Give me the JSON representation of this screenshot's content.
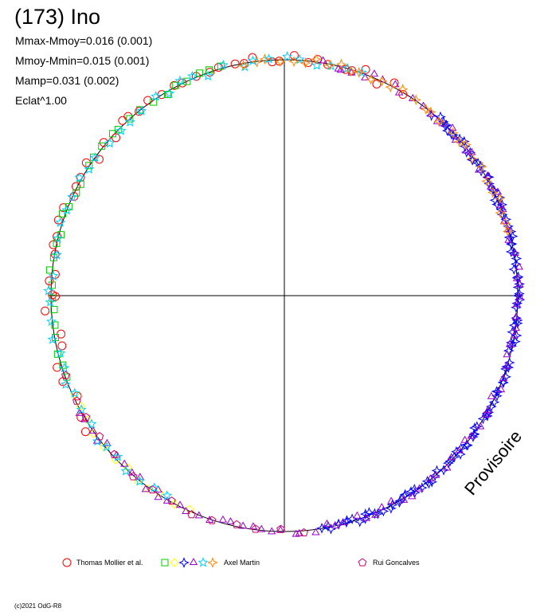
{
  "title": "(173) Ino",
  "stats": [
    "Mmax-Mmoy=0.016 (0.001)",
    "Mmoy-Mmin=0.015 (0.001)",
    "Mamp=0.031 (0.002)",
    "Eclat^1.00"
  ],
  "watermark": "Provisoire",
  "credit": "(c)2021 OdG-R8",
  "colors": {
    "red": "#ff0000",
    "green": "#00cc00",
    "yellow": "#ffff00",
    "blue": "#0000ff",
    "purple": "#9900cc",
    "cyan": "#00ccff",
    "orange": "#ff8800",
    "maroon": "#cc0066"
  },
  "legend": [
    {
      "label": "Thomas Mollier et al.",
      "markers": [
        {
          "shape": "circle",
          "color": "red"
        },
        {
          "shape": "square",
          "color": "green"
        },
        {
          "shape": "diamond",
          "color": "yellow"
        },
        {
          "shape": "star4",
          "color": "blue"
        },
        {
          "shape": "triangle",
          "color": "purple"
        },
        {
          "shape": "star5",
          "color": "cyan"
        },
        {
          "shape": "star4",
          "color": "orange"
        }
      ]
    },
    {
      "label": "Axel Martin",
      "markers": []
    },
    {
      "label": "Rui Goncalves",
      "markers": [
        {
          "shape": "pentagon",
          "color": "maroon"
        }
      ]
    }
  ],
  "chart_data": {
    "type": "scatter",
    "coordinate_system": "polar",
    "angle_range_deg": [
      0,
      360
    ],
    "radius_normalized": 1.0,
    "amplitude_mag": 0.031,
    "series": [
      {
        "color": "red",
        "marker": "circle",
        "angle_range_deg": [
          60,
          180
        ],
        "count": 40,
        "jitter": 0.02
      },
      {
        "color": "red",
        "marker": "circle",
        "angle_range_deg": [
          180,
          215
        ],
        "count": 9,
        "jitter": 0.03
      },
      {
        "color": "green",
        "marker": "square",
        "angle_range_deg": [
          105,
          200
        ],
        "count": 30,
        "jitter": 0.012
      },
      {
        "color": "yellow",
        "marker": "diamond",
        "angle_range_deg": [
          205,
          245
        ],
        "count": 12,
        "jitter": 0.01
      },
      {
        "color": "blue",
        "marker": "star4",
        "angle_range_deg": [
          -80,
          50
        ],
        "count": 120,
        "jitter": 0.012
      },
      {
        "color": "purple",
        "marker": "triangle",
        "angle_range_deg": [
          -150,
          80
        ],
        "count": 90,
        "jitter": 0.015
      },
      {
        "color": "cyan",
        "marker": "star5",
        "angle_range_deg": [
          70,
          240
        ],
        "count": 45,
        "jitter": 0.015
      },
      {
        "color": "orange",
        "marker": "star4",
        "angle_range_deg": [
          15,
          100
        ],
        "count": 30,
        "jitter": 0.012
      },
      {
        "color": "maroon",
        "marker": "pentagon",
        "angle_range_deg": [
          200,
          275
        ],
        "count": 14,
        "jitter": 0.01
      }
    ]
  }
}
